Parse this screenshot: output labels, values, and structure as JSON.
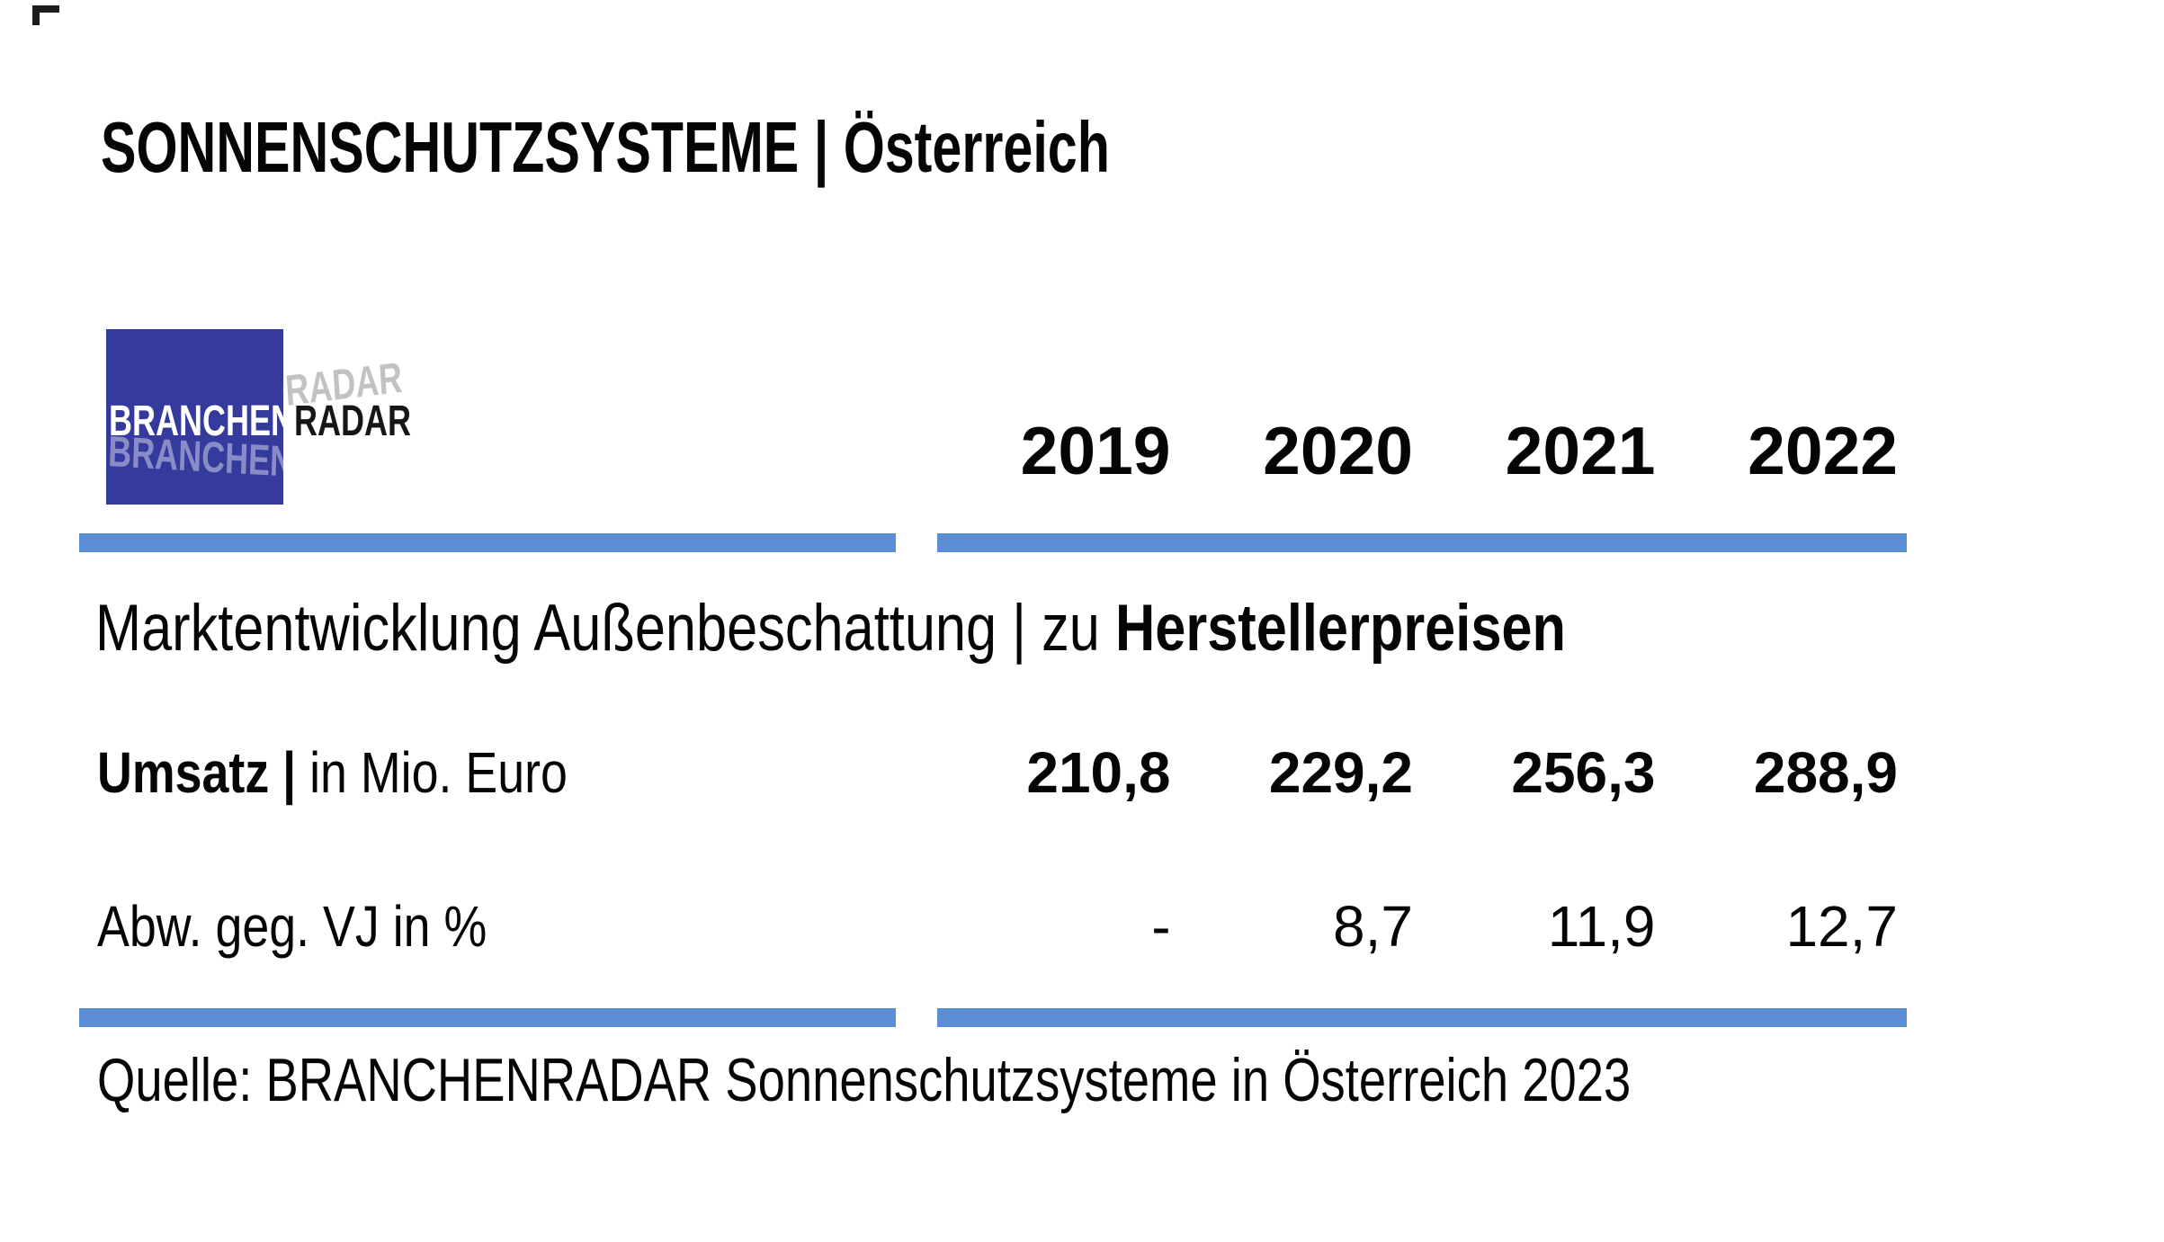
{
  "header": {
    "title": "SONNENSCHUTZSYSTEME | Österreich"
  },
  "logo": {
    "text_primary": "BRANCHEN",
    "text_secondary": "RADAR"
  },
  "table": {
    "years": [
      "2019",
      "2020",
      "2021",
      "2022"
    ],
    "subtitle": {
      "regular": "Marktentwicklung Außenbeschattung | zu ",
      "bold": "Herstellerpreisen"
    },
    "rows": [
      {
        "label_bold": "Umsatz | ",
        "label_regular": "in Mio. Euro",
        "values": [
          "210,8",
          "229,2",
          "256,3",
          "288,9"
        ]
      },
      {
        "label_bold": "",
        "label_regular": "Abw. geg. VJ in %",
        "values": [
          "-",
          "8,7",
          "11,9",
          "12,7"
        ]
      }
    ]
  },
  "source": "Quelle: BRANCHENRADAR Sonnenschutzsysteme in Österreich 2023",
  "colors": {
    "rule_blue": "#5b8ed4",
    "logo_blue": "#353a9d",
    "text_black": "#050505"
  },
  "chart_data": {
    "type": "table",
    "title": "SONNENSCHUTZSYSTEME | Österreich",
    "subtitle": "Marktentwicklung Außenbeschattung | zu Herstellerpreisen",
    "columns": [
      "2019",
      "2020",
      "2021",
      "2022"
    ],
    "rows": [
      {
        "label": "Umsatz | in Mio. Euro",
        "values": [
          210.8,
          229.2,
          256.3,
          288.9
        ]
      },
      {
        "label": "Abw. geg. VJ in %",
        "values": [
          null,
          8.7,
          11.9,
          12.7
        ]
      }
    ],
    "source": "Quelle: BRANCHENRADAR Sonnenschutzsysteme in Österreich 2023"
  }
}
